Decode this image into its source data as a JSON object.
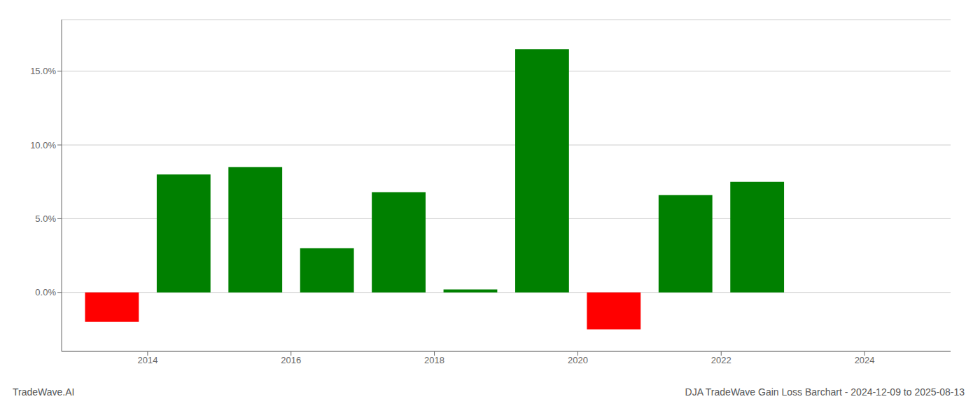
{
  "chart_data": {
    "type": "bar",
    "x": [
      2013.5,
      2014.5,
      2015.5,
      2016.5,
      2017.5,
      2018.5,
      2019.5,
      2020.5,
      2021.5,
      2022.5,
      2023.5
    ],
    "values": [
      -2.0,
      8.0,
      8.5,
      3.0,
      6.8,
      0.2,
      16.5,
      -2.5,
      6.6,
      7.5,
      0.0
    ],
    "colors": [
      "#ff0000",
      "#008000",
      "#008000",
      "#008000",
      "#008000",
      "#008000",
      "#008000",
      "#ff0000",
      "#008000",
      "#008000",
      "#008000"
    ],
    "ylim": [
      -4.0,
      18.5
    ],
    "yticks": [
      {
        "value": 0.0,
        "label": "0.0%"
      },
      {
        "value": 5.0,
        "label": "5.0%"
      },
      {
        "value": 10.0,
        "label": "10.0%"
      },
      {
        "value": 15.0,
        "label": "15.0%"
      }
    ],
    "xlim": [
      2012.8,
      2025.2
    ],
    "xticks": [
      2014,
      2016,
      2018,
      2020,
      2022,
      2024
    ],
    "grid": true,
    "annotations": [
      "TradeWave.AI",
      "DJA TradeWave Gain Loss Barchart - 2024-12-09 to 2025-08-13"
    ]
  }
}
